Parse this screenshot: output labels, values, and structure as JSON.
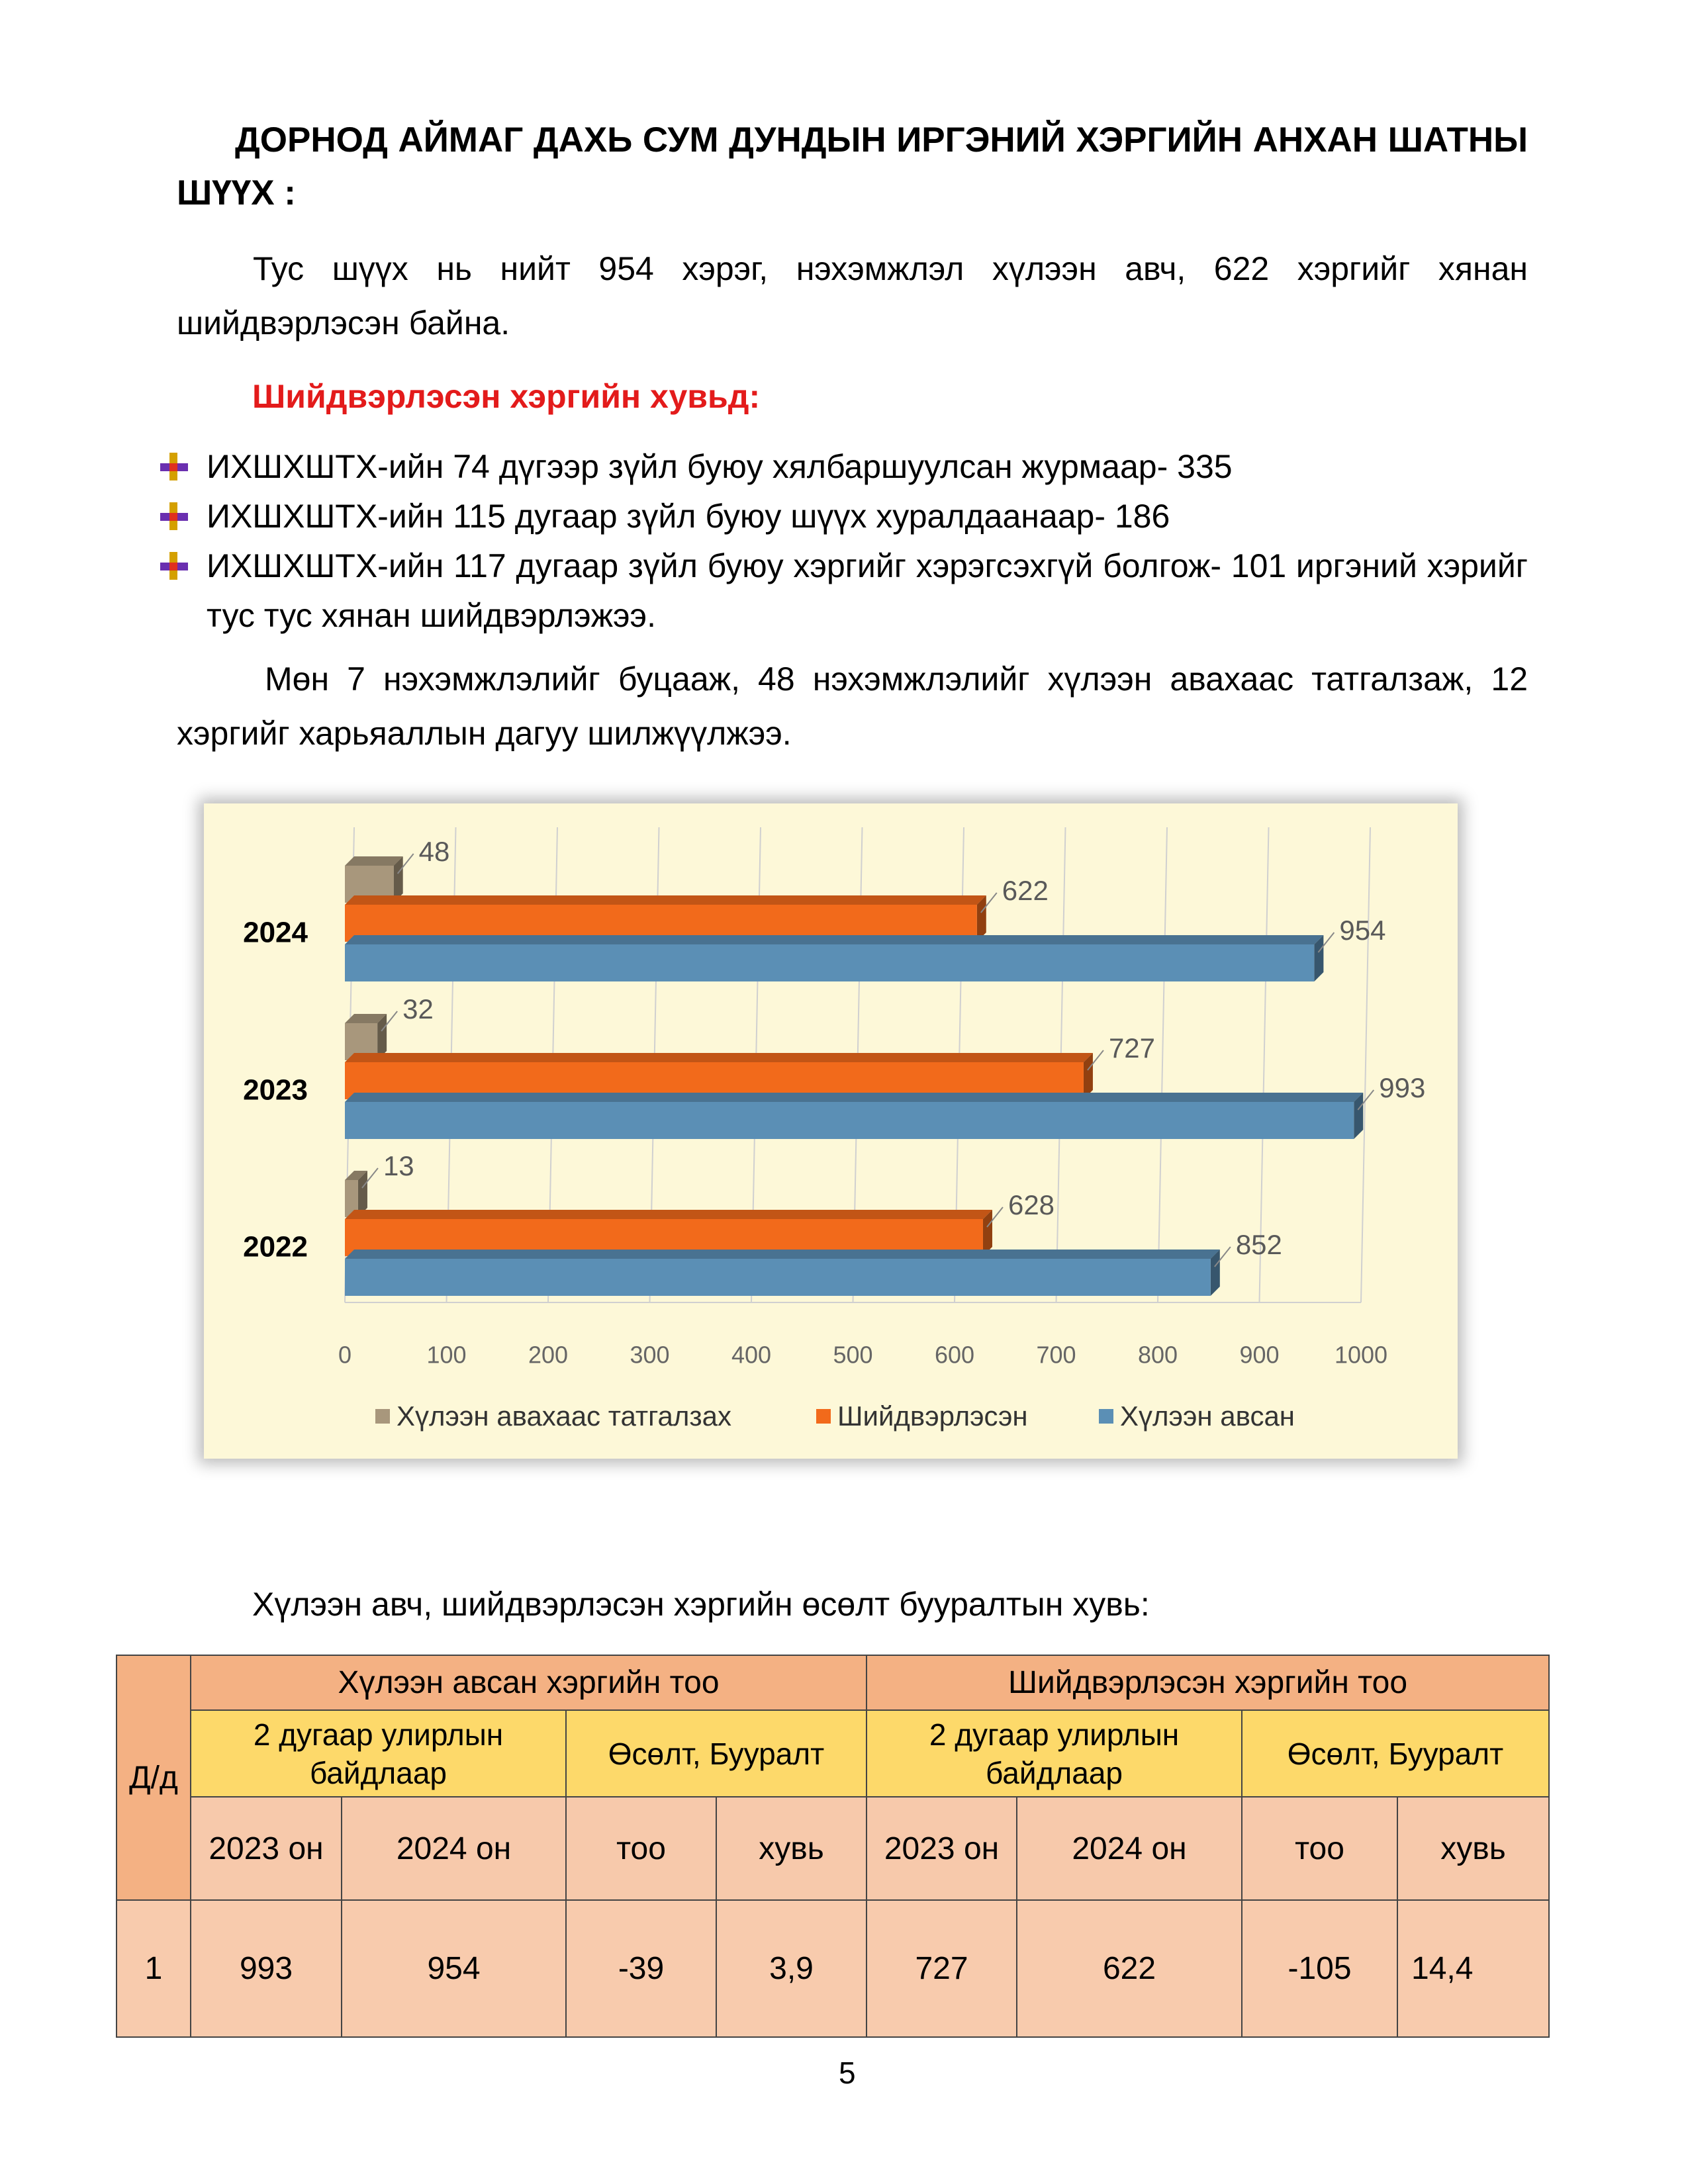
{
  "heading": "ДОРНОД АЙМАГ ДАХЬ СУМ ДУНДЫН ИРГЭНИЙ ХЭРГИЙН АНХАН ШАТНЫ ШҮҮХ :",
  "paragraphs": [
    "Тус шүүх нь нийт 954 хэрэг, нэхэмжлэл хүлээн авч, 622 хэргийг хянан шийдвэрлэсэн байна.",
    "Мөн 7 нэхэмжлэлийг буцааж, 48 нэхэмжлэлийг хүлээн авахаас татгалзаж, 12 хэргийг харьяаллын дагуу шилжүүлжээ."
  ],
  "subheading": "Шийдвэрлэсэн хэргийн хувьд:",
  "bullets": [
    "ИХШХШТХ-ийн 74 дүгээр зүйл буюу хялбаршуулсан журмаар- 335",
    "ИХШХШТХ-ийн 115 дугаар зүйл буюу шүүх хуралдаанаар- 186",
    "ИХШХШТХ-ийн 117 дугаар зүйл буюу хэргийг хэрэгсэхгүй болгож- 101 иргэний хэрийг тус тус хянан шийдвэрлэжээ."
  ],
  "chart_data": {
    "type": "hbar",
    "categories": [
      "2022",
      "2023",
      "2024"
    ],
    "series": [
      {
        "name": "Хүлээн авахаас татгалзах",
        "color": "#a8977c",
        "values": [
          13,
          32,
          48
        ]
      },
      {
        "name": "Шийдвэрлэсэн",
        "color": "#f26a1b",
        "values": [
          628,
          727,
          622
        ]
      },
      {
        "name": "Хүлээн авсан",
        "color": "#5b8fb5",
        "values": [
          852,
          993,
          954
        ]
      }
    ],
    "xlim": [
      0,
      1000
    ],
    "xticks": [
      0,
      100,
      200,
      300,
      400,
      500,
      600,
      700,
      800,
      900,
      1000
    ],
    "grid": true,
    "legend": "bottom"
  },
  "table_title": "Хүлээн авч, шийдвэрлэсэн хэргийн өсөлт бууралтын хувь:",
  "table": {
    "rownum_header": "Д/д",
    "groups": [
      "Хүлээн авсан хэргийн тоо",
      "Шийдвэрлэсэн хэргийн тоо"
    ],
    "subgroups": [
      "2 дугаар улирлын байдлаар",
      "Өсөлт, Бууралт",
      "2 дугаар улирлын байдлаар",
      "Өсөлт, Бууралт"
    ],
    "columns": [
      "2023 он",
      "2024 он",
      "тоо",
      "хувь",
      "2023 он",
      "2024 он",
      "тоо",
      "хувь"
    ],
    "rows": [
      [
        "1",
        "993",
        "954",
        "-39",
        "3,9",
        "727",
        "622",
        "-105",
        "14,4"
      ]
    ]
  },
  "page_number": "5"
}
